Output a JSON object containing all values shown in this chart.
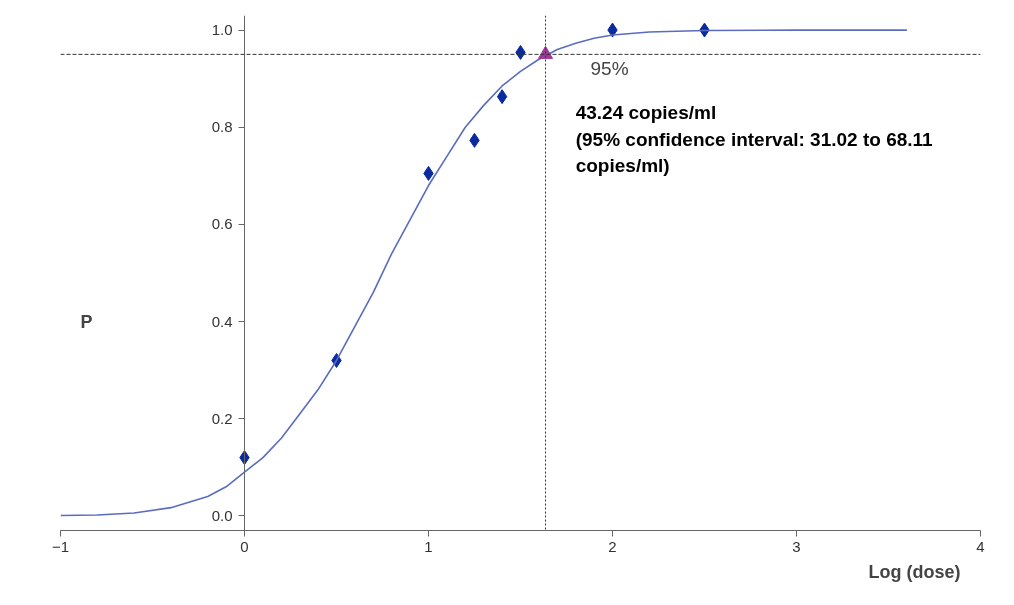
{
  "chart_data": {
    "type": "scatter",
    "xlabel": "Log (dose)",
    "ylabel": "P",
    "xlim": [
      -1,
      4
    ],
    "ylim": [
      -0.03,
      1.03
    ],
    "xticks": [
      -1,
      0,
      1,
      2,
      3,
      4
    ],
    "yticks": [
      {
        "value": 0,
        "label": "0.0"
      },
      0.2,
      0.4,
      0.6,
      0.8,
      {
        "value": 1,
        "label": "1.0"
      }
    ],
    "grid": false,
    "series": [
      {
        "marker": "diamond",
        "color": "#0a2aa0",
        "x": [
          0,
          0.5,
          1,
          1.25,
          1.4,
          1.5,
          2,
          2.5
        ],
        "values": [
          0.12,
          0.32,
          0.705,
          0.773,
          0.863,
          0.954,
          1.0,
          1.0
        ]
      },
      {
        "type": "line",
        "marker": "none",
        "color": "#5a6cc0",
        "x": [
          -1,
          -0.8,
          -0.6,
          -0.4,
          -0.2,
          -0.1,
          0,
          0.1,
          0.2,
          0.3,
          0.4,
          0.5,
          0.6,
          0.7,
          0.8,
          0.9,
          1.0,
          1.1,
          1.2,
          1.3,
          1.4,
          1.5,
          1.6,
          1.7,
          1.8,
          1.9,
          2.0,
          2.2,
          2.5,
          3.0,
          3.6
        ],
        "values": [
          0.001,
          0.002,
          0.006,
          0.017,
          0.04,
          0.06,
          0.09,
          0.12,
          0.16,
          0.21,
          0.26,
          0.32,
          0.39,
          0.46,
          0.54,
          0.61,
          0.68,
          0.74,
          0.8,
          0.845,
          0.885,
          0.915,
          0.94,
          0.96,
          0.973,
          0.983,
          0.99,
          0.996,
          0.999,
          1.0,
          1.0
        ]
      },
      {
        "marker": "triangle",
        "color": "#a03a9a",
        "x": [
          1.636
        ],
        "values": [
          0.95
        ]
      }
    ],
    "ref_lines": [
      {
        "axis": "y",
        "value": 0.95,
        "line_style": "dashed",
        "color": "#333333"
      },
      {
        "axis": "x",
        "value": 1.636,
        "line_style": "dotted",
        "color": "#333333"
      }
    ],
    "annotations": [
      {
        "text": "95%",
        "x": 1.636,
        "y": 0.95
      },
      "43.24 copies/ml\n(95% confidence interval: 31.02 to 68.11\ncopies/ml)"
    ]
  }
}
